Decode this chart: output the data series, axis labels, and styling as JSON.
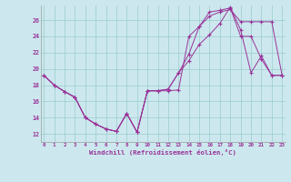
{
  "bg_color": "#cce8ee",
  "line_color": "#993399",
  "grid_color": "#99cccc",
  "xlabel": "Windchill (Refroidissement éolien,°C)",
  "xtick_labels": [
    "0",
    "1",
    "2",
    "3",
    "4",
    "5",
    "6",
    "7",
    "8",
    "9",
    "10",
    "11",
    "12",
    "13",
    "14",
    "15",
    "16",
    "17",
    "18",
    "19",
    "20",
    "21",
    "22",
    "23"
  ],
  "ytick_labels": [
    "12",
    "14",
    "16",
    "18",
    "20",
    "22",
    "24",
    "26"
  ],
  "yticks": [
    12,
    14,
    16,
    18,
    20,
    22,
    24,
    26
  ],
  "xlim": [
    -0.3,
    23.3
  ],
  "ylim": [
    11.0,
    27.8
  ],
  "line1_x": [
    0,
    1,
    2,
    3,
    4,
    5,
    6,
    7,
    8,
    9,
    10,
    11,
    12,
    13,
    14,
    15,
    16,
    17,
    18,
    19,
    20,
    21,
    22,
    23
  ],
  "line1_y": [
    19.2,
    18.0,
    17.2,
    16.5,
    14.0,
    13.2,
    12.6,
    12.3,
    14.5,
    12.2,
    17.3,
    17.3,
    17.3,
    17.4,
    24.0,
    25.2,
    26.5,
    27.0,
    27.3,
    25.8,
    25.8,
    25.8,
    25.8,
    19.2
  ],
  "line2_x": [
    0,
    1,
    2,
    3,
    4,
    5,
    6,
    7,
    8,
    9,
    10,
    11,
    12,
    13,
    14,
    15,
    16,
    17,
    18,
    19,
    20,
    21,
    22,
    23
  ],
  "line2_y": [
    19.2,
    18.0,
    17.2,
    16.5,
    14.0,
    13.2,
    12.6,
    12.3,
    14.5,
    12.2,
    17.3,
    17.3,
    17.5,
    19.5,
    21.8,
    25.2,
    27.0,
    27.2,
    27.5,
    24.0,
    24.0,
    21.2,
    19.2,
    19.2
  ],
  "line3_x": [
    0,
    1,
    2,
    3,
    4,
    5,
    6,
    7,
    8,
    9,
    10,
    11,
    12,
    13,
    14,
    15,
    16,
    17,
    18,
    19,
    20,
    21,
    22,
    23
  ],
  "line3_y": [
    19.2,
    18.0,
    17.2,
    16.5,
    14.0,
    13.2,
    12.6,
    12.3,
    14.5,
    12.2,
    17.3,
    17.3,
    17.5,
    19.5,
    21.0,
    23.0,
    24.2,
    25.6,
    27.6,
    24.8,
    19.5,
    21.6,
    19.2,
    19.2
  ]
}
